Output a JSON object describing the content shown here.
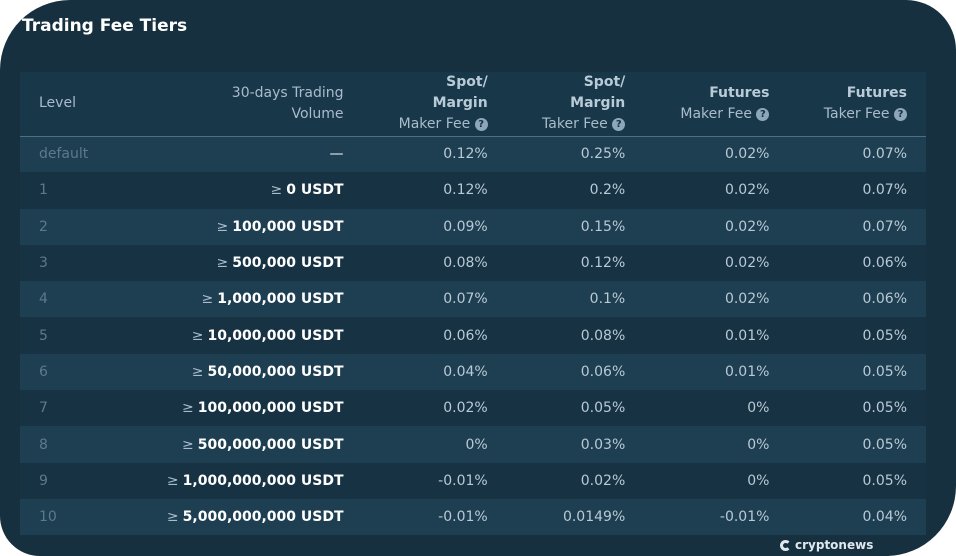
{
  "title": "Trading Fee Tiers",
  "headers": {
    "level": "Level",
    "volume_line1": "30-days Trading",
    "volume_line2": "Volume",
    "spot_maker_bold1": "Spot/",
    "spot_maker_bold2": "Margin",
    "spot_maker_sub": "Maker Fee",
    "spot_taker_bold1": "Spot/",
    "spot_taker_bold2": "Margin",
    "spot_taker_sub": "Taker Fee",
    "fut_maker_bold": "Futures",
    "fut_maker_sub": "Maker Fee",
    "fut_taker_bold": "Futures",
    "fut_taker_sub": "Taker Fee",
    "help_glyph": "?"
  },
  "ge_symbol": "≥",
  "rows": [
    {
      "level": "default",
      "volume": "—",
      "spot_maker": "0.12%",
      "spot_taker": "0.25%",
      "fut_maker": "0.02%",
      "fut_taker": "0.07%"
    },
    {
      "level": "1",
      "volume": "0 USDT",
      "spot_maker": "0.12%",
      "spot_taker": "0.2%",
      "fut_maker": "0.02%",
      "fut_taker": "0.07%"
    },
    {
      "level": "2",
      "volume": "100,000 USDT",
      "spot_maker": "0.09%",
      "spot_taker": "0.15%",
      "fut_maker": "0.02%",
      "fut_taker": "0.07%"
    },
    {
      "level": "3",
      "volume": "500,000 USDT",
      "spot_maker": "0.08%",
      "spot_taker": "0.12%",
      "fut_maker": "0.02%",
      "fut_taker": "0.06%"
    },
    {
      "level": "4",
      "volume": "1,000,000 USDT",
      "spot_maker": "0.07%",
      "spot_taker": "0.1%",
      "fut_maker": "0.02%",
      "fut_taker": "0.06%"
    },
    {
      "level": "5",
      "volume": "10,000,000 USDT",
      "spot_maker": "0.06%",
      "spot_taker": "0.08%",
      "fut_maker": "0.01%",
      "fut_taker": "0.05%"
    },
    {
      "level": "6",
      "volume": "50,000,000 USDT",
      "spot_maker": "0.04%",
      "spot_taker": "0.06%",
      "fut_maker": "0.01%",
      "fut_taker": "0.05%"
    },
    {
      "level": "7",
      "volume": "100,000,000 USDT",
      "spot_maker": "0.02%",
      "spot_taker": "0.05%",
      "fut_maker": "0%",
      "fut_taker": "0.05%"
    },
    {
      "level": "8",
      "volume": "500,000,000 USDT",
      "spot_maker": "0%",
      "spot_taker": "0.03%",
      "fut_maker": "0%",
      "fut_taker": "0.05%"
    },
    {
      "level": "9",
      "volume": "1,000,000,000 USDT",
      "spot_maker": "-0.01%",
      "spot_taker": "0.02%",
      "fut_maker": "0%",
      "fut_taker": "0.05%"
    },
    {
      "level": "10",
      "volume": "5,000,000,000 USDT",
      "spot_maker": "-0.01%",
      "spot_taker": "0.0149%",
      "fut_maker": "-0.01%",
      "fut_taker": "0.04%"
    }
  ],
  "watermark": "cryptonews"
}
